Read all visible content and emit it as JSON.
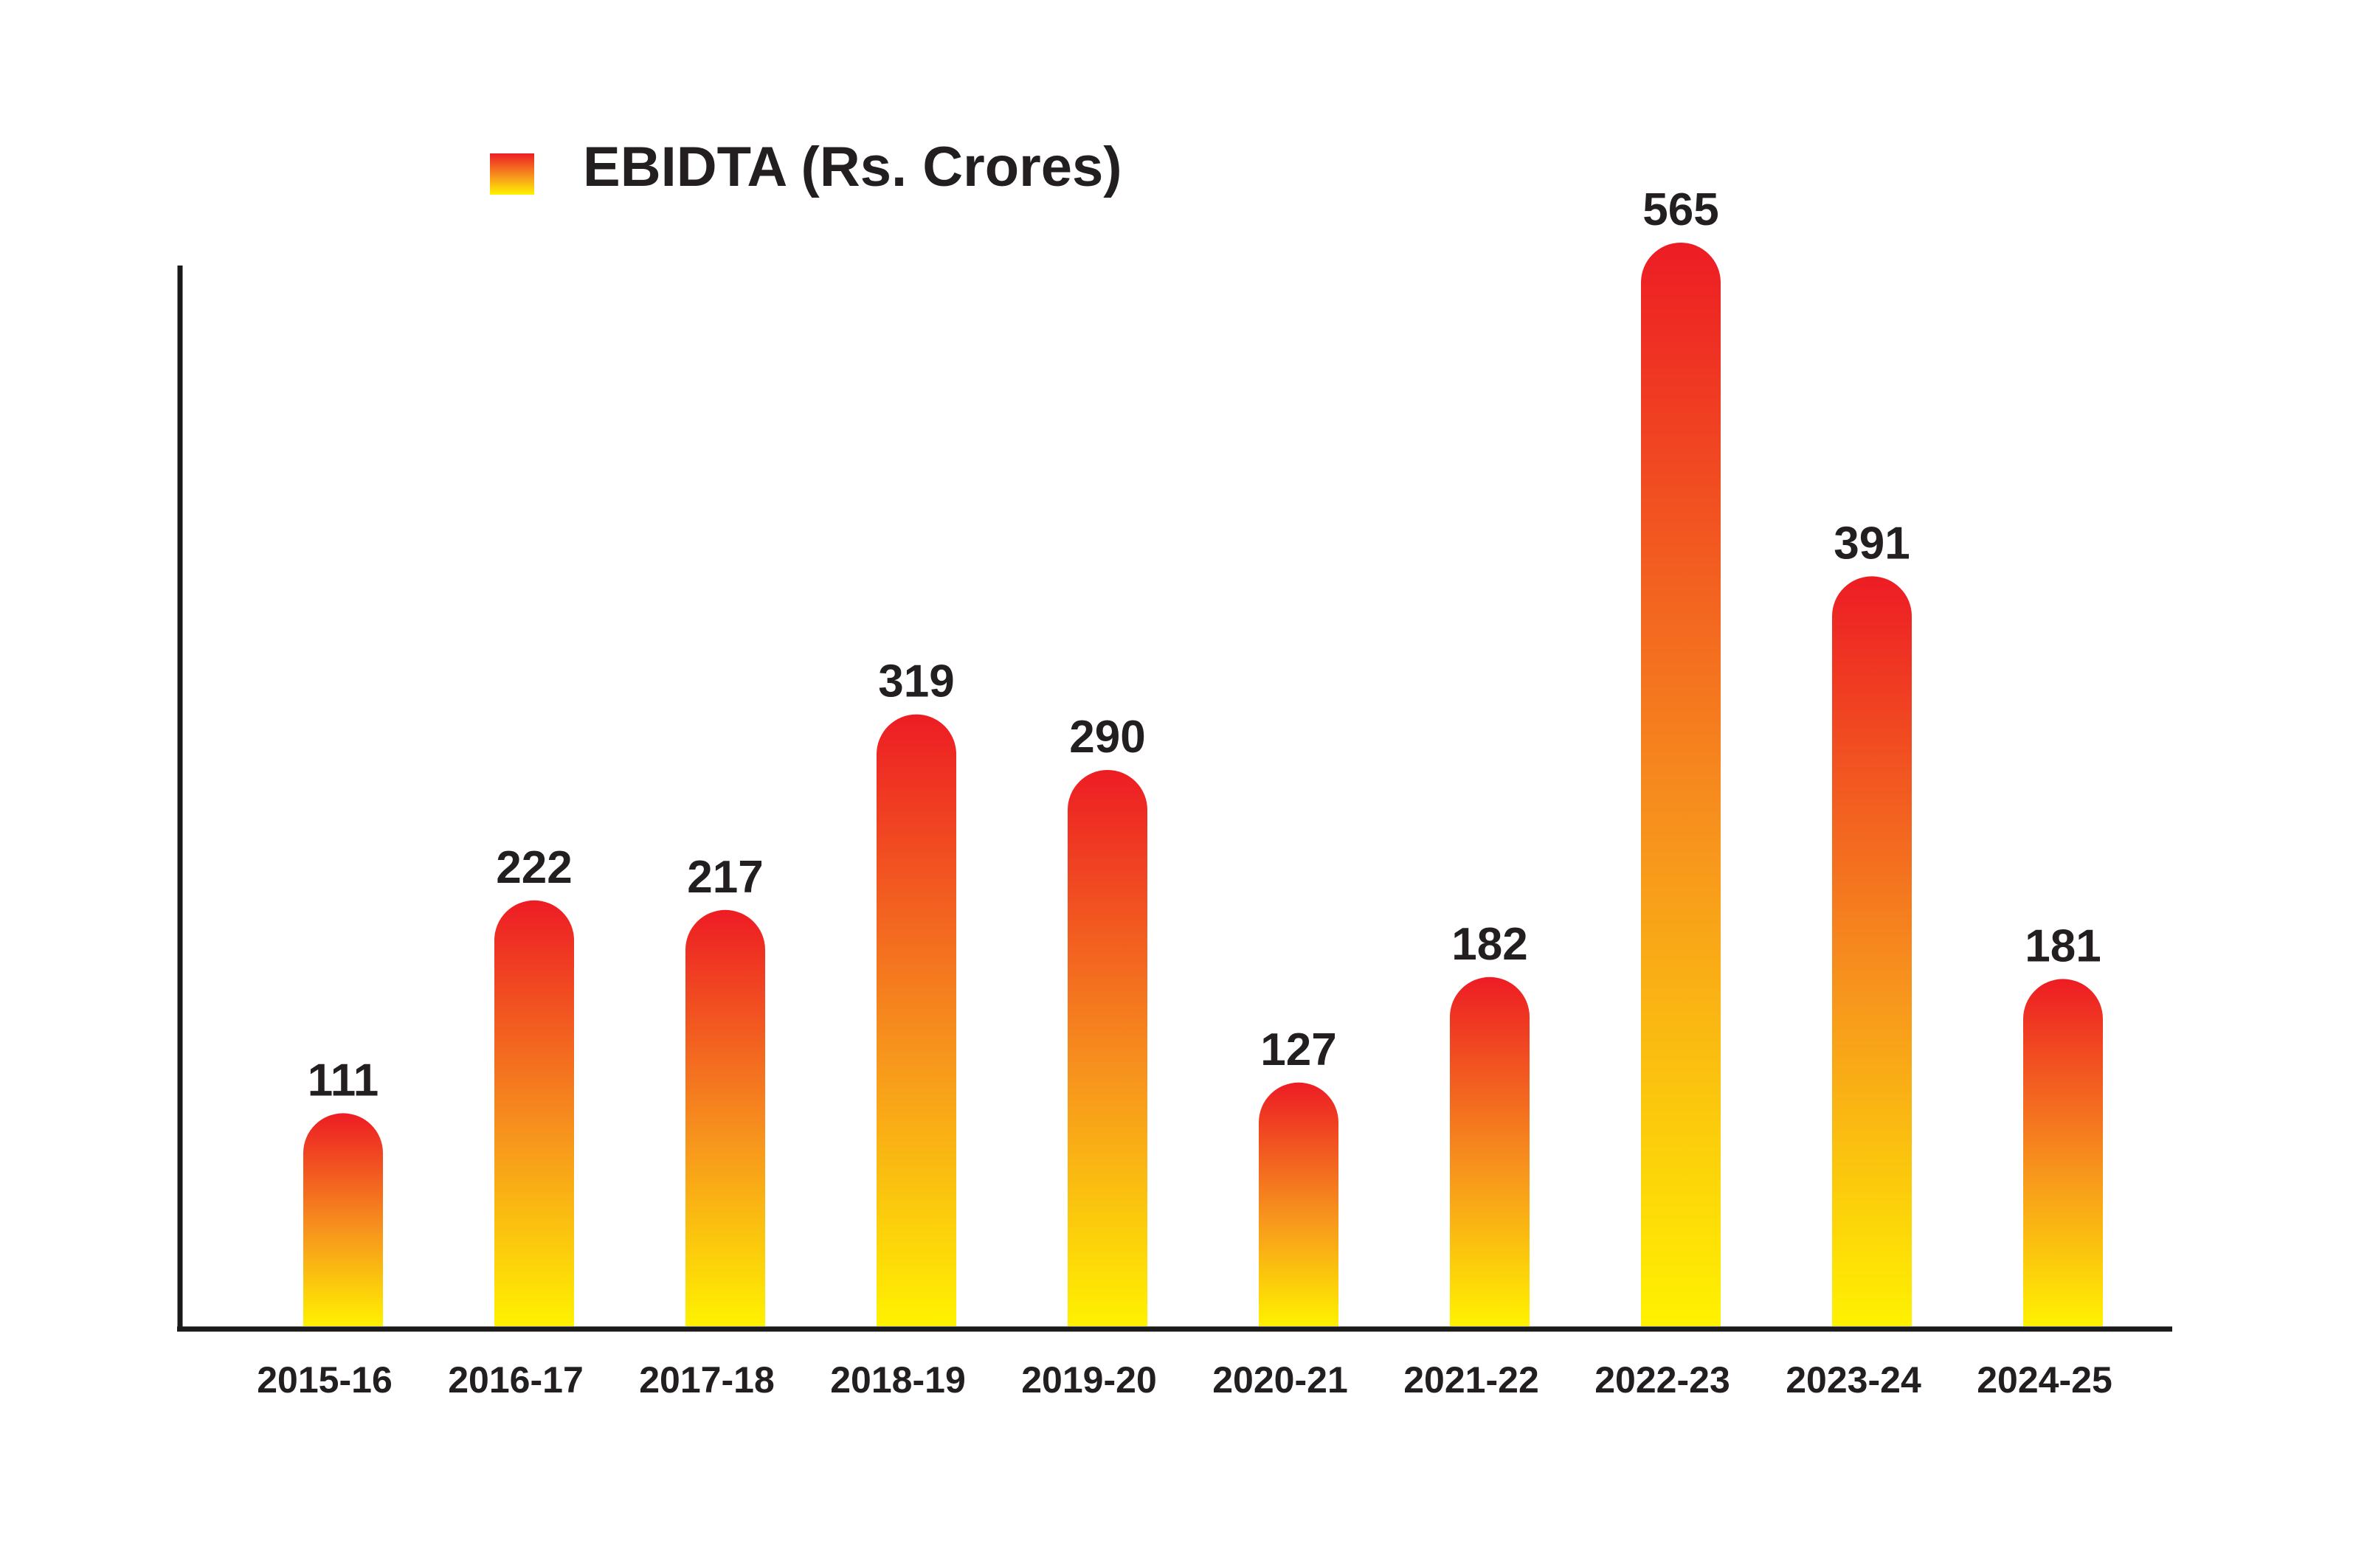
{
  "chart_data": {
    "type": "bar",
    "categories": [
      "2015-16",
      "2016-17",
      "2017-18",
      "2018-19",
      "2019-20",
      "2020-21",
      "2021-22",
      "2022-23",
      "2023-24",
      "2024-25"
    ],
    "series": [
      {
        "name": "EBIDTA (Rs. Crores)",
        "values": [
          111,
          222,
          217,
          319,
          290,
          127,
          182,
          565,
          391,
          181
        ]
      }
    ],
    "data_labels": [
      "111",
      "222",
      "217",
      "319",
      "290",
      "127",
      "182",
      "565",
      "391",
      "181"
    ],
    "ylim": [
      0,
      600
    ],
    "grid": false,
    "legend_position": "top-left",
    "colors": {
      "bar_top": "#ed1c24",
      "bar_mid": "#f7941d",
      "bar_bottom": "#fff200",
      "axis": "#1a1a1a",
      "text": "#231f20"
    }
  }
}
